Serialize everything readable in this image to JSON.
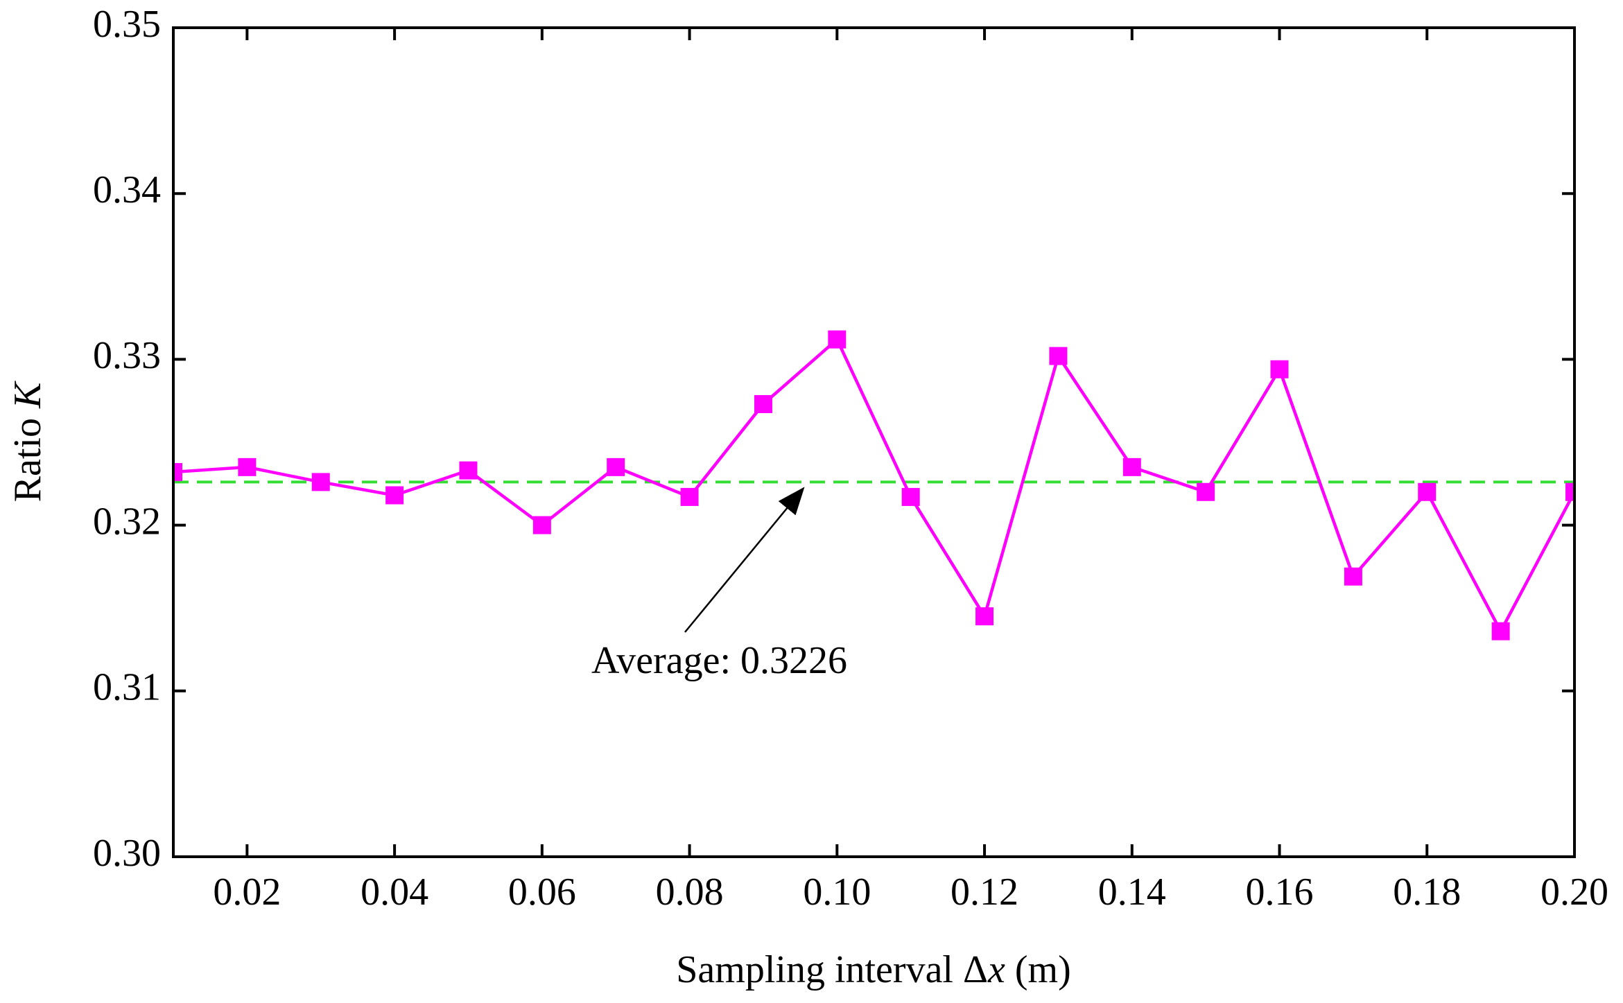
{
  "chart_data": {
    "type": "line",
    "x": [
      0.01,
      0.02,
      0.03,
      0.04,
      0.05,
      0.06,
      0.07,
      0.08,
      0.09,
      0.1,
      0.11,
      0.12,
      0.13,
      0.14,
      0.15,
      0.16,
      0.17,
      0.18,
      0.19,
      0.2
    ],
    "series": [
      {
        "name": "Ratio K",
        "color": "#ff00ff",
        "values": [
          0.3232,
          0.3235,
          0.3226,
          0.3218,
          0.3233,
          0.32,
          0.3235,
          0.3217,
          0.3273,
          0.3312,
          0.3217,
          0.3145,
          0.3302,
          0.3235,
          0.322,
          0.3294,
          0.3169,
          0.322,
          0.3136,
          0.322
        ]
      }
    ],
    "average": {
      "value": 0.3226,
      "color": "#33dd33",
      "label": "Average: 0.3226"
    },
    "xlabel": [
      "Sampling interval Δ",
      "x",
      " (m)"
    ],
    "ylabel": [
      "Ratio ",
      "K"
    ],
    "xlim": [
      0.01,
      0.2
    ],
    "ylim": [
      0.3,
      0.35
    ],
    "xticks": [
      0.02,
      0.04,
      0.06,
      0.08,
      {
        "value": 0.1,
        "label": "0.10"
      },
      0.12,
      0.14,
      0.16,
      0.18,
      {
        "value": 0.2,
        "label": "0.20"
      }
    ],
    "yticks": [
      {
        "value": 0.3,
        "label": "0.30"
      },
      0.31,
      0.32,
      0.33,
      0.34,
      {
        "value": 0.35,
        "label": "0.35"
      }
    ],
    "grid": false
  }
}
